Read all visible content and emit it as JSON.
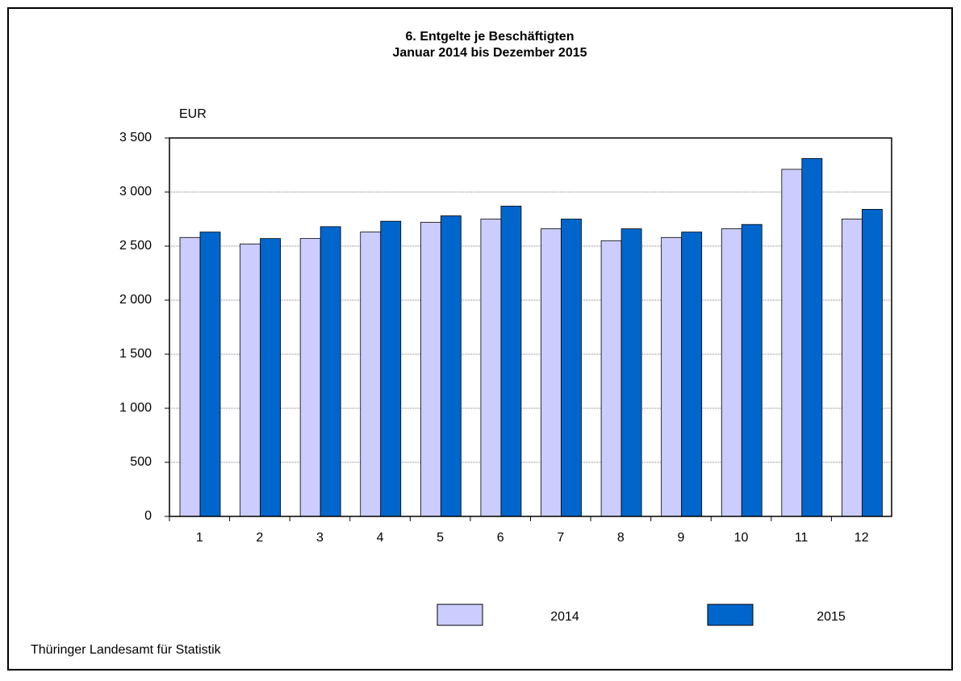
{
  "chart_data": {
    "type": "bar",
    "title": "6. Entgelte je Beschäftigten",
    "subtitle": "Januar 2014 bis Dezember 2015",
    "y_label": "EUR",
    "source": "Thüringer Landesamt für Statistik",
    "categories": [
      "1",
      "2",
      "3",
      "4",
      "5",
      "6",
      "7",
      "8",
      "9",
      "10",
      "11",
      "12"
    ],
    "series": [
      {
        "name": "2014",
        "color": "#ccccff",
        "values": [
          2580,
          2520,
          2570,
          2630,
          2720,
          2750,
          2660,
          2550,
          2580,
          2660,
          3210,
          2750
        ]
      },
      {
        "name": "2015",
        "color": "#0066cc",
        "values": [
          2630,
          2570,
          2680,
          2730,
          2780,
          2870,
          2750,
          2660,
          2630,
          2700,
          3310,
          2840
        ]
      }
    ],
    "ylim": [
      0,
      3500
    ],
    "yticks": [
      0,
      500,
      {
        "value": 1000,
        "label": "1 000"
      },
      {
        "value": 1500,
        "label": "1 500"
      },
      {
        "value": 2000,
        "label": "2 000"
      },
      {
        "value": 2500,
        "label": "2 500"
      },
      {
        "value": 3000,
        "label": "3 000"
      },
      {
        "value": 3500,
        "label": "3 500"
      }
    ],
    "grid": true,
    "legend": "bottom"
  }
}
